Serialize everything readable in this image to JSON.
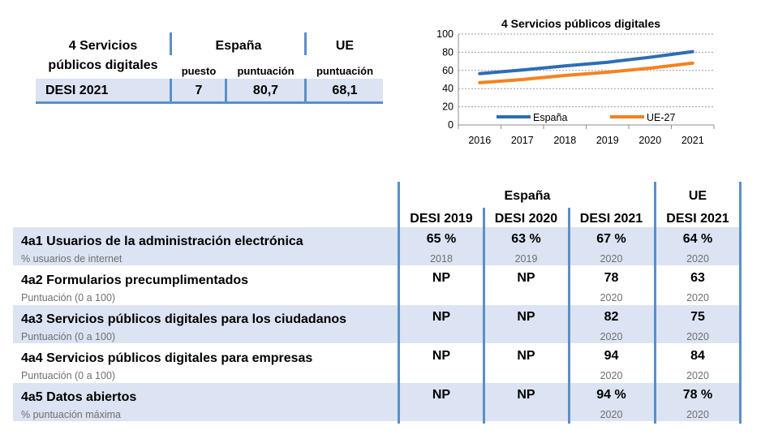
{
  "summary": {
    "title_line1": "4 Servicios",
    "title_line2": "públicos digitales",
    "group_es": "España",
    "group_ue": "UE",
    "col_puesto": "puesto",
    "col_puntuacion_es": "puntuación",
    "col_puntuacion_ue": "puntuación",
    "row_label": "DESI 2021",
    "puesto": "7",
    "puntuacion_es": "80,7",
    "puntuacion_ue": "68,1"
  },
  "chart_data": {
    "type": "line",
    "title": "4 Servicios públicos digitales",
    "x": [
      "2016",
      "2017",
      "2018",
      "2019",
      "2020",
      "2021"
    ],
    "series": [
      {
        "name": "España",
        "values": [
          56.5,
          60.5,
          65,
          69,
          74.5,
          80.7
        ],
        "color": "#2e6db4"
      },
      {
        "name": "UE-27",
        "values": [
          46.5,
          50,
          54.5,
          58,
          62.5,
          68.1
        ],
        "color": "#f58220"
      }
    ],
    "ylim": [
      0,
      100
    ],
    "yticks": [
      "0",
      "20",
      "40",
      "60",
      "80",
      "100"
    ],
    "grid": true,
    "legend": "bottom"
  },
  "detail": {
    "group_es": "España",
    "group_ue": "UE",
    "cols": [
      "DESI 2019",
      "DESI 2020",
      "DESI 2021",
      "DESI 2021"
    ],
    "rows": [
      {
        "label": "4a1 Usuarios de la administración electrónica",
        "unit": "% usuarios de internet",
        "v": [
          "65 %",
          "63 %",
          "67 %",
          "64 %"
        ],
        "y": [
          "2018",
          "2019",
          "2020",
          "2020"
        ]
      },
      {
        "label": "4a2 Formularios precumplimentados",
        "unit": "Puntuación (0 a 100)",
        "v": [
          "NP",
          "NP",
          "78",
          "63"
        ],
        "y": [
          "",
          "",
          "2020",
          "2020"
        ]
      },
      {
        "label": "4a3 Servicios públicos digitales para los ciudadanos",
        "unit": "Puntuación (0 a 100)",
        "v": [
          "NP",
          "NP",
          "82",
          "75"
        ],
        "y": [
          "",
          "",
          "2020",
          "2020"
        ]
      },
      {
        "label": "4a4 Servicios públicos digitales para empresas",
        "unit": "Puntuación (0 a 100)",
        "v": [
          "NP",
          "NP",
          "94",
          "84"
        ],
        "y": [
          "",
          "",
          "2020",
          "2020"
        ]
      },
      {
        "label": "4a5 Datos abiertos",
        "unit": "% puntuación máxima",
        "v": [
          "NP",
          "NP",
          "94 %",
          "78 %"
        ],
        "y": [
          "",
          "",
          "2020",
          "2020"
        ]
      }
    ]
  },
  "colors": {
    "band": "#dce3f2",
    "rule": "#5b8fc8"
  }
}
